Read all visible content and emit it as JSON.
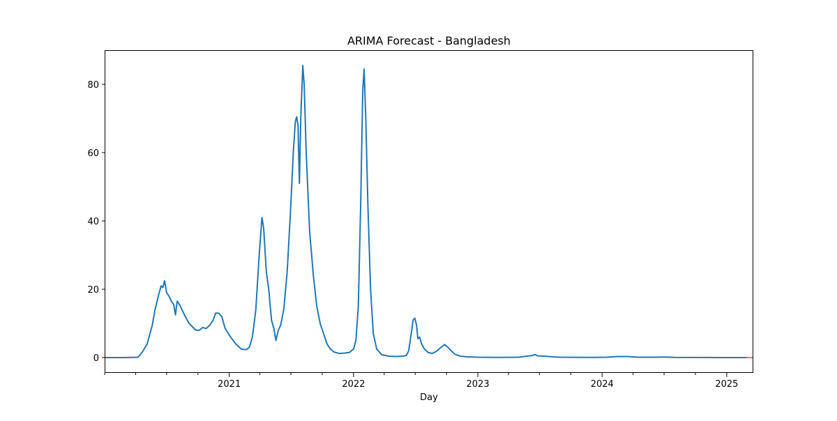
{
  "chart_data": {
    "type": "line",
    "title": "ARIMA Forecast - Bangladesh",
    "xlabel": "Day",
    "ylabel": "",
    "x_axis_type": "date",
    "xlim": [
      "2020-01-01",
      "2025-03-20"
    ],
    "ylim": [
      -4.5,
      90
    ],
    "x_ticks": [
      {
        "date": "2021-01-01",
        "label": "2021"
      },
      {
        "date": "2022-01-01",
        "label": "2022"
      },
      {
        "date": "2023-01-01",
        "label": "2023"
      },
      {
        "date": "2024-01-01",
        "label": "2024"
      },
      {
        "date": "2025-01-01",
        "label": "2025"
      }
    ],
    "y_ticks": [
      0,
      20,
      40,
      60,
      80
    ],
    "grid": false,
    "legend": "none",
    "series": [
      {
        "color": "#1f77b4",
        "points": [
          [
            "2020-01-01",
            0.0
          ],
          [
            "2020-03-01",
            0.0
          ],
          [
            "2020-04-08",
            0.1
          ],
          [
            "2020-04-20",
            1.5
          ],
          [
            "2020-05-05",
            4.0
          ],
          [
            "2020-05-20",
            9.5
          ],
          [
            "2020-05-28",
            14.0
          ],
          [
            "2020-06-08",
            18.5
          ],
          [
            "2020-06-15",
            21.0
          ],
          [
            "2020-06-20",
            20.5
          ],
          [
            "2020-06-25",
            22.5
          ],
          [
            "2020-07-01",
            19.0
          ],
          [
            "2020-07-08",
            18.0
          ],
          [
            "2020-07-15",
            16.5
          ],
          [
            "2020-07-22",
            15.5
          ],
          [
            "2020-07-27",
            12.5
          ],
          [
            "2020-08-01",
            16.5
          ],
          [
            "2020-08-08",
            15.5
          ],
          [
            "2020-08-15",
            14.0
          ],
          [
            "2020-08-25",
            12.0
          ],
          [
            "2020-09-05",
            10.0
          ],
          [
            "2020-09-15",
            9.0
          ],
          [
            "2020-09-25",
            8.0
          ],
          [
            "2020-10-05",
            8.0
          ],
          [
            "2020-10-15",
            8.8
          ],
          [
            "2020-10-25",
            8.5
          ],
          [
            "2020-11-05",
            9.5
          ],
          [
            "2020-11-15",
            11.0
          ],
          [
            "2020-11-22",
            13.0
          ],
          [
            "2020-12-01",
            13.0
          ],
          [
            "2020-12-10",
            12.0
          ],
          [
            "2020-12-20",
            8.5
          ],
          [
            "2021-01-05",
            6.0
          ],
          [
            "2021-01-20",
            4.0
          ],
          [
            "2021-02-05",
            2.5
          ],
          [
            "2021-02-20",
            2.3
          ],
          [
            "2021-03-01",
            3.0
          ],
          [
            "2021-03-10",
            6.0
          ],
          [
            "2021-03-20",
            14.0
          ],
          [
            "2021-03-30",
            30.0
          ],
          [
            "2021-04-07",
            41.0
          ],
          [
            "2021-04-12",
            38.0
          ],
          [
            "2021-04-20",
            25.0
          ],
          [
            "2021-04-27",
            20.0
          ],
          [
            "2021-05-05",
            11.0
          ],
          [
            "2021-05-12",
            8.5
          ],
          [
            "2021-05-18",
            5.0
          ],
          [
            "2021-05-25",
            8.0
          ],
          [
            "2021-06-01",
            9.5
          ],
          [
            "2021-06-10",
            14.0
          ],
          [
            "2021-06-20",
            25.0
          ],
          [
            "2021-06-30",
            43.0
          ],
          [
            "2021-07-08",
            60.0
          ],
          [
            "2021-07-14",
            69.0
          ],
          [
            "2021-07-18",
            70.5
          ],
          [
            "2021-07-22",
            68.0
          ],
          [
            "2021-07-26",
            51.0
          ],
          [
            "2021-07-30",
            70.0
          ],
          [
            "2021-08-05",
            85.5
          ],
          [
            "2021-08-09",
            80.0
          ],
          [
            "2021-08-15",
            60.0
          ],
          [
            "2021-08-25",
            37.0
          ],
          [
            "2021-09-05",
            24.0
          ],
          [
            "2021-09-15",
            15.0
          ],
          [
            "2021-09-25",
            10.0
          ],
          [
            "2021-10-05",
            7.0
          ],
          [
            "2021-10-15",
            4.0
          ],
          [
            "2021-10-25",
            2.5
          ],
          [
            "2021-11-05",
            1.6
          ],
          [
            "2021-11-20",
            1.2
          ],
          [
            "2021-12-05",
            1.3
          ],
          [
            "2021-12-20",
            1.5
          ],
          [
            "2022-01-01",
            2.5
          ],
          [
            "2022-01-08",
            5.0
          ],
          [
            "2022-01-15",
            15.0
          ],
          [
            "2022-01-22",
            45.0
          ],
          [
            "2022-01-28",
            78.0
          ],
          [
            "2022-02-01",
            84.5
          ],
          [
            "2022-02-06",
            70.0
          ],
          [
            "2022-02-12",
            45.0
          ],
          [
            "2022-02-20",
            20.0
          ],
          [
            "2022-02-28",
            7.0
          ],
          [
            "2022-03-10",
            2.5
          ],
          [
            "2022-03-25",
            0.8
          ],
          [
            "2022-04-15",
            0.4
          ],
          [
            "2022-05-05",
            0.3
          ],
          [
            "2022-05-25",
            0.4
          ],
          [
            "2022-06-05",
            0.6
          ],
          [
            "2022-06-12",
            2.0
          ],
          [
            "2022-06-18",
            6.0
          ],
          [
            "2022-06-25",
            11.0
          ],
          [
            "2022-06-30",
            11.5
          ],
          [
            "2022-07-05",
            9.5
          ],
          [
            "2022-07-09",
            5.5
          ],
          [
            "2022-07-14",
            6.0
          ],
          [
            "2022-07-20",
            4.0
          ],
          [
            "2022-07-28",
            2.5
          ],
          [
            "2022-08-08",
            1.5
          ],
          [
            "2022-08-20",
            1.2
          ],
          [
            "2022-09-01",
            1.8
          ],
          [
            "2022-09-15",
            3.0
          ],
          [
            "2022-09-25",
            3.8
          ],
          [
            "2022-10-05",
            3.0
          ],
          [
            "2022-10-15",
            2.0
          ],
          [
            "2022-10-25",
            1.0
          ],
          [
            "2022-11-10",
            0.4
          ],
          [
            "2022-12-01",
            0.2
          ],
          [
            "2023-01-01",
            0.1
          ],
          [
            "2023-03-01",
            0.05
          ],
          [
            "2023-05-01",
            0.1
          ],
          [
            "2023-05-25",
            0.4
          ],
          [
            "2023-06-10",
            0.6
          ],
          [
            "2023-06-18",
            0.9
          ],
          [
            "2023-06-25",
            0.5
          ],
          [
            "2023-07-15",
            0.4
          ],
          [
            "2023-08-10",
            0.2
          ],
          [
            "2023-09-01",
            0.1
          ],
          [
            "2023-12-01",
            0.05
          ],
          [
            "2024-01-15",
            0.1
          ],
          [
            "2024-02-15",
            0.3
          ],
          [
            "2024-03-15",
            0.3
          ],
          [
            "2024-04-15",
            0.1
          ],
          [
            "2024-06-01",
            0.1
          ],
          [
            "2024-07-01",
            0.15
          ],
          [
            "2024-08-01",
            0.05
          ],
          [
            "2024-12-01",
            0.0
          ],
          [
            "2025-03-01",
            0.0
          ]
        ]
      },
      {
        "color": "#ff7f0e",
        "points": [
          [
            "2025-03-01",
            0.0
          ],
          [
            "2025-03-20",
            0.0
          ]
        ]
      }
    ]
  }
}
